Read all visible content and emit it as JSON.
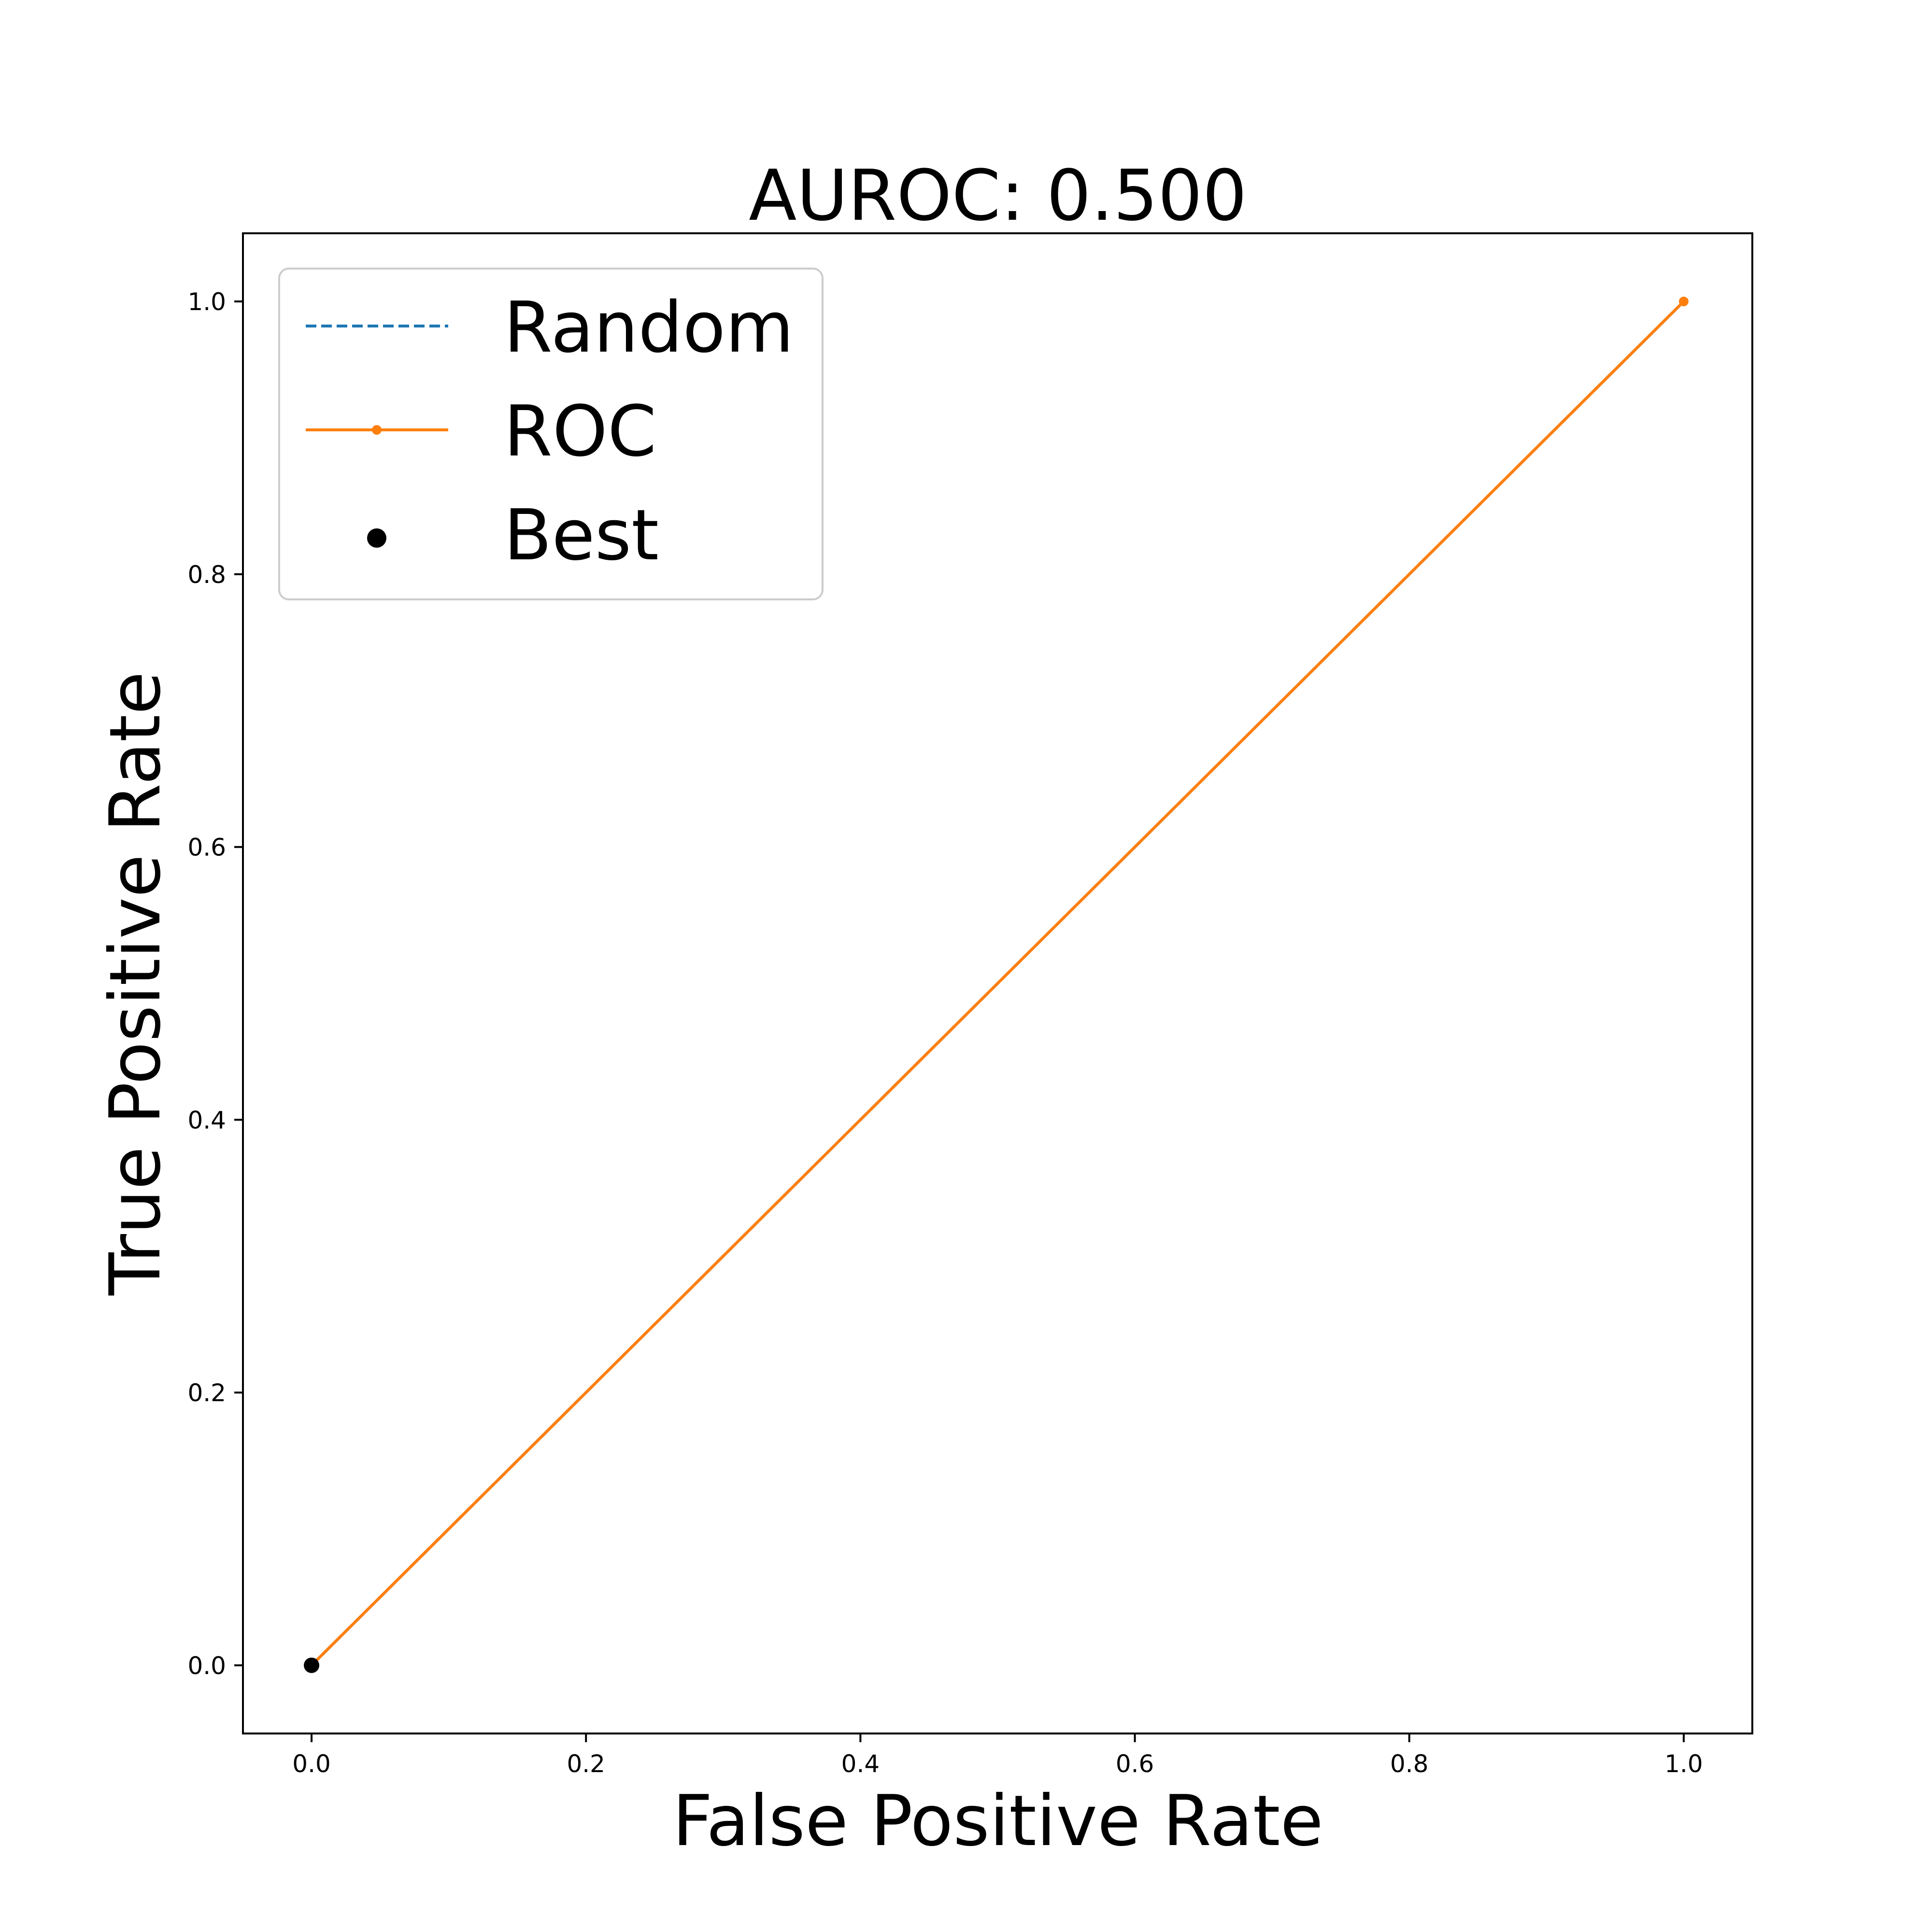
{
  "chart_data": {
    "type": "line",
    "title": "AUROC: 0.500",
    "xlabel": "False Positive Rate",
    "ylabel": "True Positive Rate",
    "xlim": [
      -0.05,
      1.05
    ],
    "ylim": [
      -0.05,
      1.05
    ],
    "xticks": [
      "0.0",
      "0.2",
      "0.4",
      "0.6",
      "0.8",
      "1.0"
    ],
    "yticks": [
      "0.0",
      "0.2",
      "0.4",
      "0.6",
      "0.8",
      "1.0"
    ],
    "grid": false,
    "legend_position": "top-left",
    "series": [
      {
        "name": "Random",
        "style": "dashed",
        "color": "#1f77b4",
        "x": [
          0.0,
          1.0
        ],
        "y": [
          0.0,
          1.0
        ]
      },
      {
        "name": "ROC",
        "style": "solid-with-markers",
        "color": "#ff7f0e",
        "x": [
          0.0,
          1.0
        ],
        "y": [
          0.0,
          1.0
        ]
      },
      {
        "name": "Best",
        "style": "point",
        "color": "#000000",
        "x": [
          0.0
        ],
        "y": [
          0.0
        ]
      }
    ]
  }
}
